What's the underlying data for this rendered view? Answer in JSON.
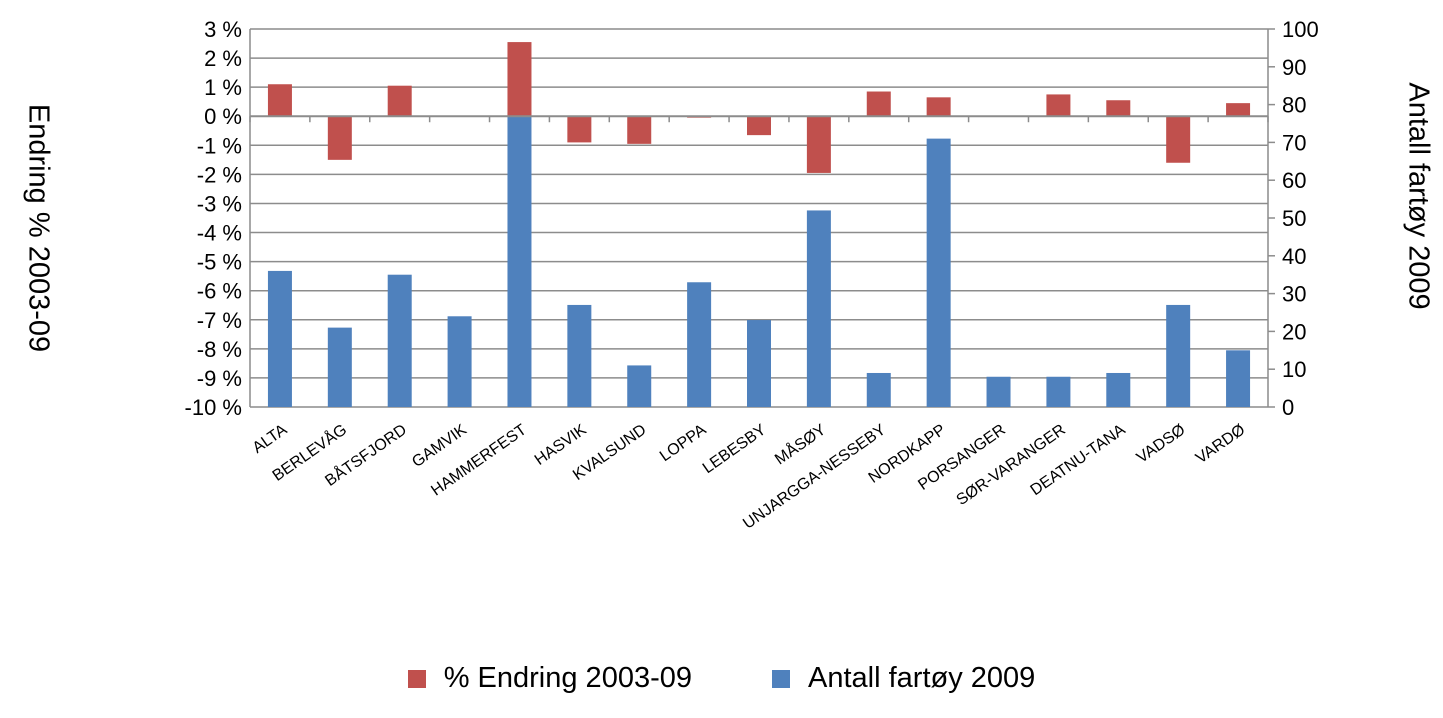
{
  "chart_data": {
    "type": "bar",
    "title": "",
    "ylabel": "Endring   % 2003-09",
    "y2label": "Antall fartøy 2009",
    "categories": [
      "ALTA",
      "BERLEVÅG",
      "BÅTSFJORD",
      "GAMVIK",
      "HAMMERFEST",
      "HASVIK",
      "KVALSUND",
      "LOPPA",
      "LEBESBY",
      "MÅSØY",
      "UNJARGGA-NESSEBY",
      "NORDKAPP",
      "PORSANGER",
      "SØR-VARANGER",
      "DEATNU-TANA",
      "VADSØ",
      "VARDØ"
    ],
    "series": [
      {
        "name": "% Endring 2003-09",
        "axis": "left",
        "color": "#c0504d",
        "values": [
          1.1,
          -1.5,
          1.05,
          0,
          2.55,
          -0.9,
          -0.95,
          -0.05,
          -0.65,
          -1.95,
          0.85,
          0.65,
          0,
          0.75,
          0.55,
          -1.6,
          0.45
        ]
      },
      {
        "name": "Antall fartøy  2009",
        "axis": "right",
        "color": "#4f81bd",
        "values": [
          36,
          21,
          35,
          24,
          78,
          27,
          11,
          33,
          23,
          52,
          9,
          71,
          8,
          8,
          9,
          27,
          15
        ]
      }
    ],
    "ylim": [
      -10,
      3
    ],
    "y2lim": [
      0,
      100
    ],
    "yticks": [
      "3 %",
      "2 %",
      "1 %",
      "0 %",
      "-1 %",
      "-2 %",
      "-3 %",
      "-4 %",
      "-5 %",
      "-6 %",
      "-7 %",
      "-8 %",
      "-9 %",
      "-10 %"
    ],
    "y2ticks": [
      "100",
      "90",
      "80",
      "70",
      "60",
      "50",
      "40",
      "30",
      "20",
      "10",
      "0"
    ],
    "legend_position": "bottom",
    "grid": true
  }
}
